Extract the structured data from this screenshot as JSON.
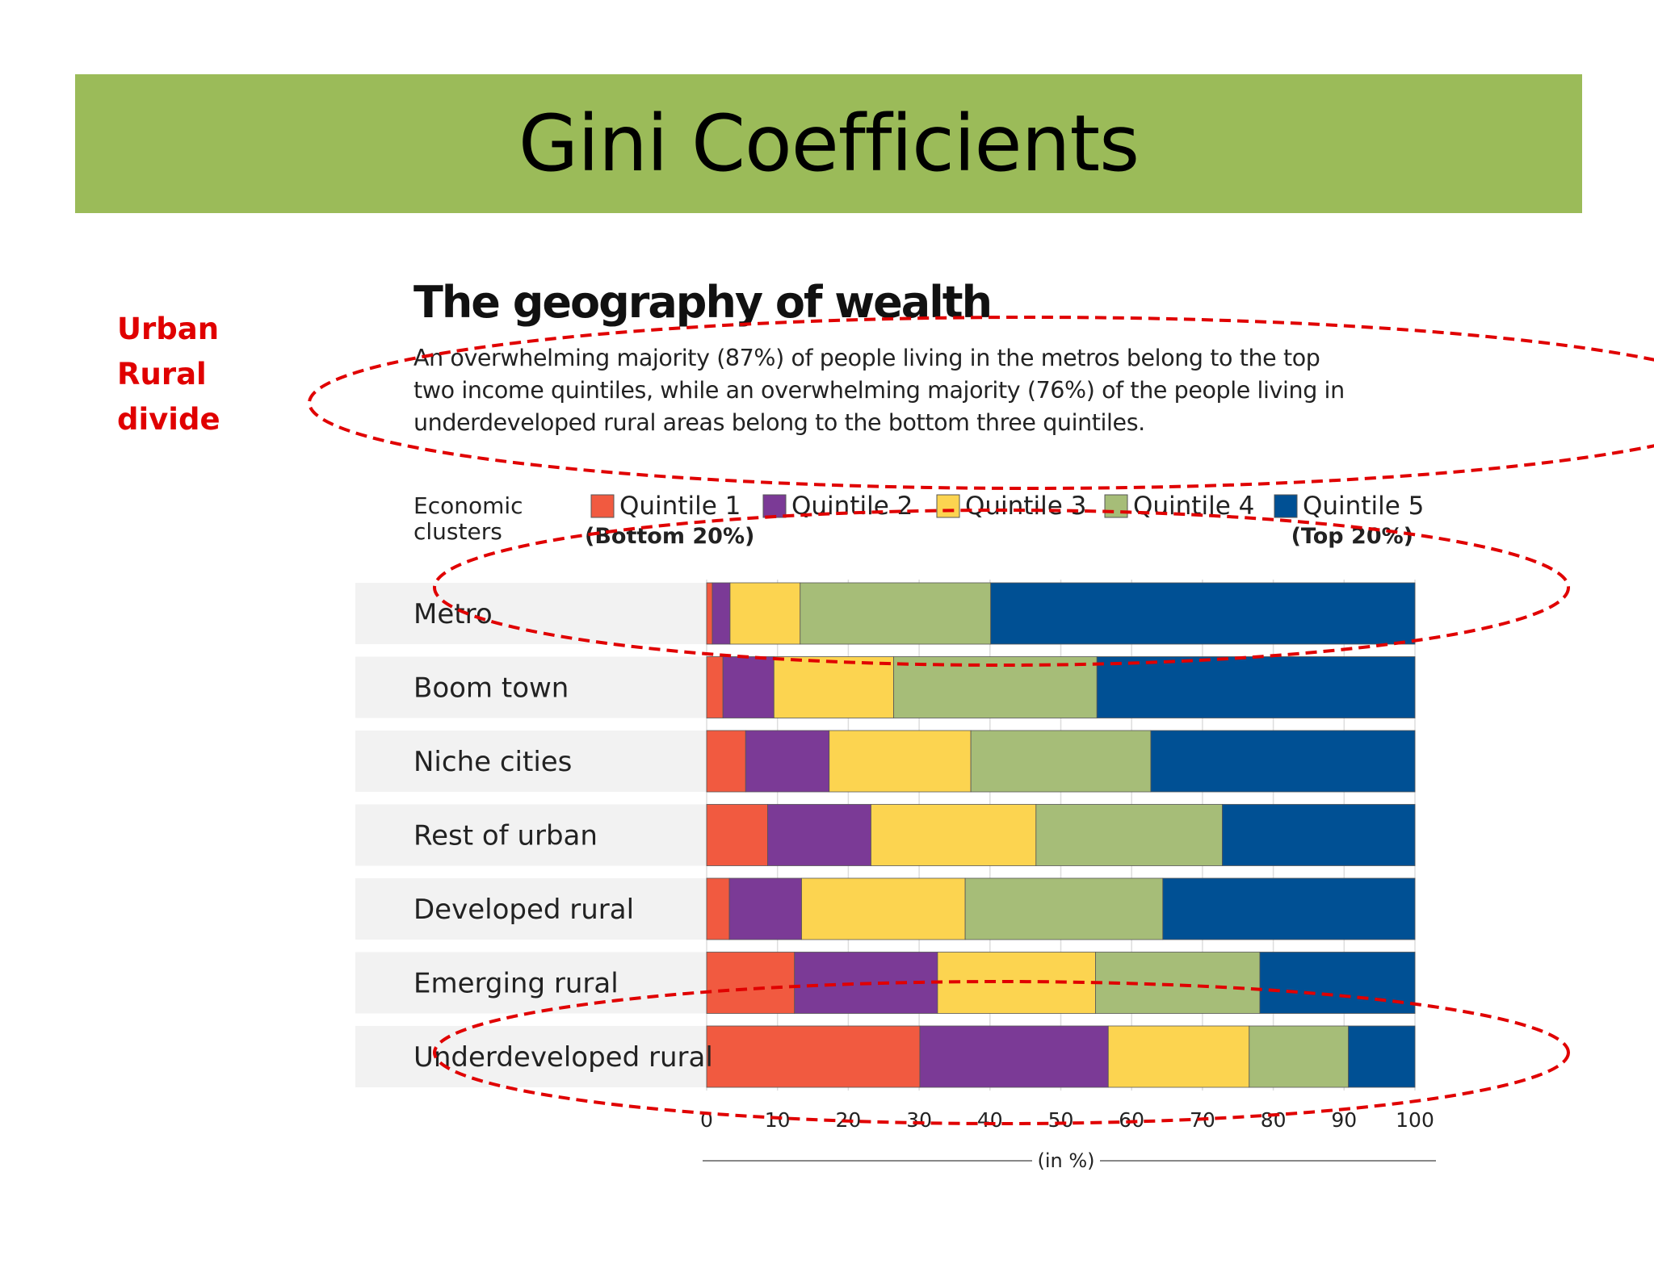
{
  "slide": {
    "title": "Gini Coefficients",
    "side_note": [
      "Urban",
      "Rural",
      "divide"
    ],
    "accent_color": "#9bbb59",
    "annotation_color": "#e00000"
  },
  "chart_data": {
    "type": "bar",
    "orientation": "horizontal",
    "stacked": true,
    "title": "The geography of wealth",
    "subtitle": "An overwhelming majority (87%) of people living in the metros belong to the top two income quintiles, while an overwhelming majority (76%) of the people living in underdeveloped rural areas belong to the bottom three quintiles.",
    "legend_heading": [
      "Economic",
      "clusters"
    ],
    "legend_placement": "top",
    "categories": [
      "Metro",
      "Boom town",
      "Niche cities",
      "Rest of urban",
      "Developed rural",
      "Emerging rural",
      "Underdeveloped rural"
    ],
    "series": [
      {
        "name": "Quintile 1",
        "note": "(Bottom 20%)",
        "color": "#f15a40",
        "values": [
          0.8,
          2.3,
          5.5,
          8.6,
          3.2,
          12.4,
          30.1
        ]
      },
      {
        "name": "Quintile 2",
        "color": "#7b3a96",
        "values": [
          2.5,
          7.2,
          11.8,
          14.6,
          10.2,
          20.2,
          26.6
        ]
      },
      {
        "name": "Quintile 3",
        "color": "#fcd450",
        "values": [
          9.9,
          16.9,
          20.0,
          23.3,
          23.1,
          22.3,
          19.9
        ]
      },
      {
        "name": "Quintile 4",
        "color": "#a6bd78",
        "values": [
          26.9,
          28.7,
          25.4,
          26.3,
          27.9,
          23.2,
          14.0
        ]
      },
      {
        "name": "Quintile 5",
        "note": "(Top 20%)",
        "color": "#005094",
        "values": [
          59.9,
          44.9,
          37.3,
          27.2,
          35.6,
          21.9,
          9.4
        ]
      }
    ],
    "xlim": [
      0,
      100
    ],
    "xticks": [
      0,
      10,
      20,
      30,
      40,
      50,
      60,
      70,
      80,
      90,
      100
    ],
    "xlabel": "(in %)",
    "grid": true
  }
}
